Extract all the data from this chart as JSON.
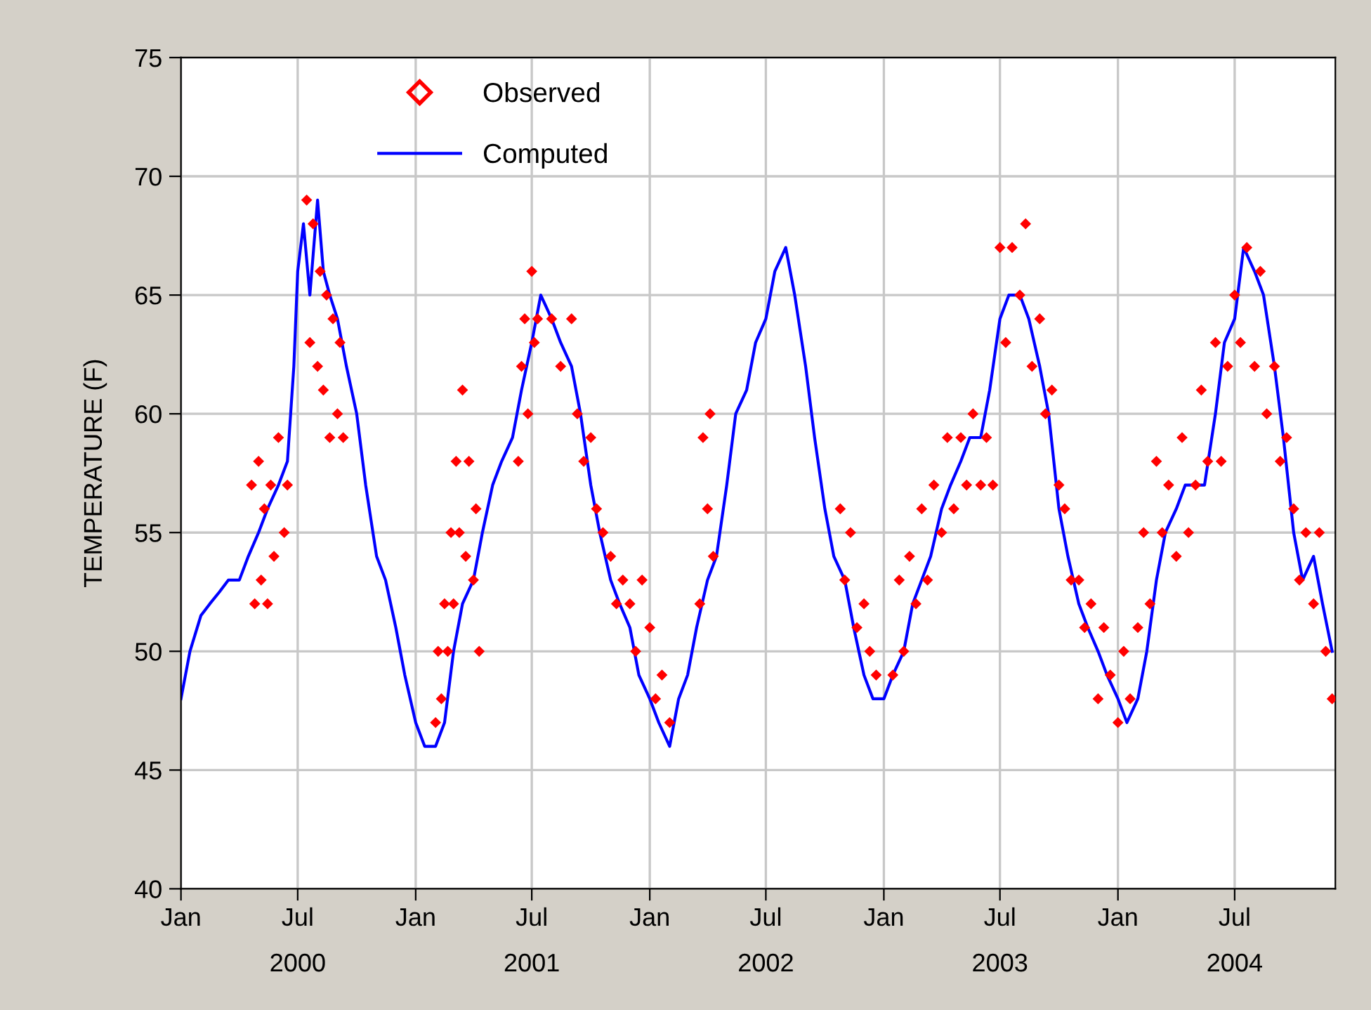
{
  "chart_data": {
    "type": "line",
    "ylabel": "TEMPERATURE (F)",
    "xlim": [
      "2000-01-01",
      "2004-12-05"
    ],
    "ylim": [
      40,
      75
    ],
    "yticks": [
      40,
      45,
      50,
      55,
      60,
      65,
      70,
      75
    ],
    "xticks": [
      {
        "value": "2000-01-01",
        "label": "Jan"
      },
      {
        "value": "2000-07-01",
        "label": "Jul\n2000"
      },
      {
        "value": "2001-01-01",
        "label": "Jan"
      },
      {
        "value": "2001-07-01",
        "label": "Jul\n2001"
      },
      {
        "value": "2002-01-01",
        "label": "Jan"
      },
      {
        "value": "2002-07-01",
        "label": "Jul\n2002"
      },
      {
        "value": "2003-01-01",
        "label": "Jan"
      },
      {
        "value": "2003-07-01",
        "label": "Jul\n2003"
      },
      {
        "value": "2004-01-01",
        "label": "Jan"
      },
      {
        "value": "2004-07-01",
        "label": "Jul\n2004"
      }
    ],
    "grid": true,
    "legend": "top left",
    "series": [
      {
        "name": "Observed",
        "type": "scatter",
        "marker": "diamond",
        "color": "#ff0000",
        "x": [
          "2000-04-20",
          "2000-04-25",
          "2000-05-01",
          "2000-05-05",
          "2000-05-10",
          "2000-05-15",
          "2000-05-20",
          "2000-05-25",
          "2000-06-01",
          "2000-06-10",
          "2000-06-15",
          "2000-07-15",
          "2000-07-20",
          "2000-07-25",
          "2000-08-01",
          "2000-08-05",
          "2000-08-10",
          "2000-08-15",
          "2000-08-20",
          "2000-08-25",
          "2000-09-01",
          "2000-09-05",
          "2000-09-10",
          "2001-02-01",
          "2001-02-05",
          "2001-02-10",
          "2001-02-15",
          "2001-02-20",
          "2001-02-25",
          "2001-03-01",
          "2001-03-05",
          "2001-03-10",
          "2001-03-15",
          "2001-03-20",
          "2001-03-25",
          "2001-04-01",
          "2001-04-05",
          "2001-04-10",
          "2001-06-10",
          "2001-06-15",
          "2001-06-20",
          "2001-06-25",
          "2001-07-01",
          "2001-07-05",
          "2001-07-10",
          "2001-08-01",
          "2001-08-15",
          "2001-09-01",
          "2001-09-10",
          "2001-09-20",
          "2001-10-01",
          "2001-10-10",
          "2001-10-20",
          "2001-11-01",
          "2001-11-10",
          "2001-11-20",
          "2001-12-01",
          "2001-12-10",
          "2001-12-20",
          "2002-01-01",
          "2002-01-10",
          "2002-01-20",
          "2002-02-01",
          "2002-03-20",
          "2002-03-25",
          "2002-04-01",
          "2002-04-05",
          "2002-04-10",
          "2002-10-25",
          "2002-11-01",
          "2002-11-10",
          "2002-11-20",
          "2002-12-01",
          "2002-12-10",
          "2002-12-20",
          "2003-01-15",
          "2003-01-25",
          "2003-02-01",
          "2003-02-10",
          "2003-02-20",
          "2003-03-01",
          "2003-03-10",
          "2003-03-20",
          "2003-04-01",
          "2003-04-10",
          "2003-04-20",
          "2003-05-01",
          "2003-05-10",
          "2003-05-20",
          "2003-06-01",
          "2003-06-10",
          "2003-06-20",
          "2003-07-01",
          "2003-07-10",
          "2003-07-20",
          "2003-08-01",
          "2003-08-10",
          "2003-08-20",
          "2003-09-01",
          "2003-09-10",
          "2003-09-20",
          "2003-10-01",
          "2003-10-10",
          "2003-10-20",
          "2003-11-01",
          "2003-11-10",
          "2003-11-20",
          "2003-12-01",
          "2003-12-10",
          "2003-12-20",
          "2004-01-01",
          "2004-01-10",
          "2004-01-20",
          "2004-02-01",
          "2004-02-10",
          "2004-02-20",
          "2004-03-01",
          "2004-03-10",
          "2004-03-20",
          "2004-04-01",
          "2004-04-10",
          "2004-04-20",
          "2004-05-01",
          "2004-05-10",
          "2004-05-20",
          "2004-06-01",
          "2004-06-10",
          "2004-06-20",
          "2004-07-01",
          "2004-07-10",
          "2004-07-20",
          "2004-08-01",
          "2004-08-10",
          "2004-08-20",
          "2004-09-01",
          "2004-09-10",
          "2004-09-20",
          "2004-10-01",
          "2004-10-10",
          "2004-10-20",
          "2004-11-01",
          "2004-11-10",
          "2004-11-20",
          "2004-11-30"
        ],
        "values": [
          57,
          52,
          58,
          53,
          56,
          52,
          57,
          54,
          59,
          55,
          57,
          69,
          63,
          68,
          62,
          66,
          61,
          65,
          59,
          64,
          60,
          63,
          59,
          47,
          50,
          48,
          52,
          50,
          55,
          52,
          58,
          55,
          61,
          54,
          58,
          53,
          56,
          50,
          58,
          62,
          64,
          60,
          66,
          63,
          64,
          64,
          62,
          64,
          60,
          58,
          59,
          56,
          55,
          54,
          52,
          53,
          52,
          50,
          53,
          51,
          48,
          49,
          47,
          52,
          59,
          56,
          60,
          54,
          56,
          53,
          55,
          51,
          52,
          50,
          49,
          49,
          53,
          50,
          54,
          52,
          56,
          53,
          57,
          55,
          59,
          56,
          59,
          57,
          60,
          57,
          59,
          57,
          67,
          63,
          67,
          65,
          68,
          62,
          64,
          60,
          61,
          57,
          56,
          53,
          53,
          51,
          52,
          48,
          51,
          49,
          47,
          50,
          48,
          51,
          55,
          52,
          58,
          55,
          57,
          54,
          59,
          55,
          57,
          61,
          58,
          63,
          58,
          62,
          65,
          63,
          67,
          62,
          66,
          60,
          62,
          58,
          59,
          56,
          53,
          55,
          52,
          55,
          50,
          48
        ]
      },
      {
        "name": "Computed",
        "color": "#0000ff",
        "x": [
          "2000-01-01",
          "2000-01-15",
          "2000-02-01",
          "2000-02-15",
          "2000-03-01",
          "2000-03-15",
          "2000-04-01",
          "2000-04-15",
          "2000-05-01",
          "2000-05-15",
          "2000-06-01",
          "2000-06-15",
          "2000-06-25",
          "2000-07-01",
          "2000-07-10",
          "2000-07-20",
          "2000-08-01",
          "2000-08-10",
          "2000-08-20",
          "2000-09-01",
          "2000-09-15",
          "2000-10-01",
          "2000-10-15",
          "2000-11-01",
          "2000-11-15",
          "2000-12-01",
          "2000-12-15",
          "2001-01-01",
          "2001-01-15",
          "2001-02-01",
          "2001-02-15",
          "2001-03-01",
          "2001-03-15",
          "2001-04-01",
          "2001-04-15",
          "2001-05-01",
          "2001-05-15",
          "2001-06-01",
          "2001-06-15",
          "2001-07-01",
          "2001-07-15",
          "2001-08-01",
          "2001-08-15",
          "2001-09-01",
          "2001-09-15",
          "2001-10-01",
          "2001-10-15",
          "2001-11-01",
          "2001-11-15",
          "2001-12-01",
          "2001-12-15",
          "2002-01-01",
          "2002-01-15",
          "2002-02-01",
          "2002-02-15",
          "2002-03-01",
          "2002-03-15",
          "2002-04-01",
          "2002-04-15",
          "2002-05-01",
          "2002-05-15",
          "2002-06-01",
          "2002-06-15",
          "2002-07-01",
          "2002-07-15",
          "2002-08-01",
          "2002-08-15",
          "2002-09-01",
          "2002-09-15",
          "2002-10-01",
          "2002-10-15",
          "2002-11-01",
          "2002-11-15",
          "2002-12-01",
          "2002-12-15",
          "2003-01-01",
          "2003-01-15",
          "2003-02-01",
          "2003-02-15",
          "2003-03-01",
          "2003-03-15",
          "2003-04-01",
          "2003-04-15",
          "2003-05-01",
          "2003-05-15",
          "2003-06-01",
          "2003-06-15",
          "2003-07-01",
          "2003-07-15",
          "2003-08-01",
          "2003-08-15",
          "2003-09-01",
          "2003-09-15",
          "2003-10-01",
          "2003-10-15",
          "2003-11-01",
          "2003-11-15",
          "2003-12-01",
          "2003-12-15",
          "2004-01-01",
          "2004-01-15",
          "2004-02-01",
          "2004-02-15",
          "2004-03-01",
          "2004-03-15",
          "2004-04-01",
          "2004-04-15",
          "2004-05-01",
          "2004-05-15",
          "2004-06-01",
          "2004-06-15",
          "2004-07-01",
          "2004-07-15",
          "2004-08-01",
          "2004-08-15",
          "2004-09-01",
          "2004-09-15",
          "2004-10-01",
          "2004-10-15",
          "2004-11-01",
          "2004-11-15",
          "2004-11-30"
        ],
        "values": [
          48,
          50,
          51.5,
          52,
          52.5,
          53,
          53,
          54,
          55,
          56,
          57,
          58,
          62,
          66,
          68,
          65,
          69,
          66,
          65,
          64,
          62,
          60,
          57,
          54,
          53,
          51,
          49,
          47,
          46,
          46,
          47,
          50,
          52,
          53,
          55,
          57,
          58,
          59,
          61,
          63,
          65,
          64,
          63,
          62,
          60,
          57,
          55,
          53,
          52,
          51,
          49,
          48,
          47,
          46,
          48,
          49,
          51,
          53,
          54,
          57,
          60,
          61,
          63,
          64,
          66,
          67,
          65,
          62,
          59,
          56,
          54,
          53,
          51,
          49,
          48,
          48,
          49,
          50,
          52,
          53,
          54,
          56,
          57,
          58,
          59,
          59,
          61,
          64,
          65,
          65,
          64,
          62,
          60,
          56,
          54,
          52,
          51,
          50,
          49,
          48,
          47,
          48,
          50,
          53,
          55,
          56,
          57,
          57,
          57,
          60,
          63,
          64,
          67,
          66,
          65,
          62,
          59,
          55,
          53,
          54,
          52,
          50
        ]
      }
    ]
  }
}
